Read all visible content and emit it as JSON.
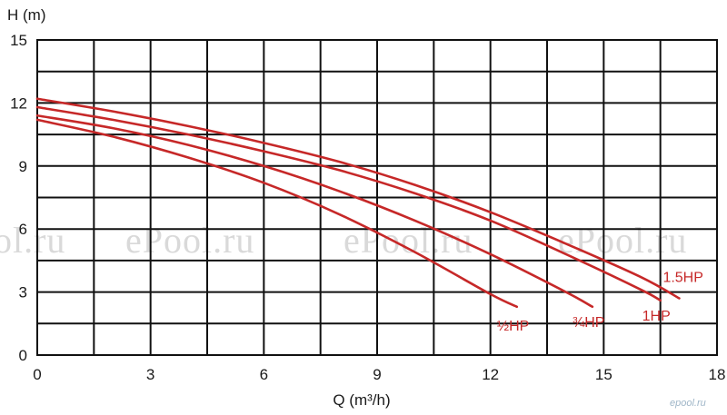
{
  "chart_data": {
    "type": "line",
    "title": "",
    "xlabel": "Q (m³/h)",
    "ylabel": "H (m)",
    "xlim": [
      0,
      18
    ],
    "ylim": [
      0,
      15
    ],
    "xticks": [
      "0",
      "3",
      "6",
      "9",
      "12",
      "15",
      "18"
    ],
    "yticks": [
      "0",
      "3",
      "6",
      "9",
      "12",
      "15"
    ],
    "grid": true,
    "series_color": "#c62828",
    "series": [
      {
        "name": "½HP",
        "x": [
          0,
          2,
          4,
          6,
          8,
          10,
          12,
          12.7
        ],
        "y": [
          11.2,
          10.4,
          9.4,
          8.2,
          6.7,
          4.9,
          2.9,
          2.3
        ]
      },
      {
        "name": "¾HP",
        "x": [
          0,
          2,
          4,
          6,
          8,
          10,
          12,
          14,
          14.7
        ],
        "y": [
          11.4,
          10.8,
          10.0,
          9.0,
          7.8,
          6.4,
          4.8,
          3.0,
          2.3
        ]
      },
      {
        "name": "1HP",
        "x": [
          0,
          2,
          4,
          6,
          8,
          10,
          12,
          14,
          16,
          16.5
        ],
        "y": [
          11.8,
          11.2,
          10.5,
          9.7,
          8.8,
          7.7,
          6.4,
          4.8,
          3.1,
          2.6
        ]
      },
      {
        "name": "1.5HP",
        "x": [
          0,
          2,
          4,
          6,
          8,
          10,
          12,
          14,
          16,
          17
        ],
        "y": [
          12.2,
          11.6,
          10.9,
          10.1,
          9.2,
          8.1,
          6.8,
          5.3,
          3.7,
          2.7
        ]
      }
    ],
    "watermark": "ePool.ru",
    "brand": "epool.ru"
  }
}
